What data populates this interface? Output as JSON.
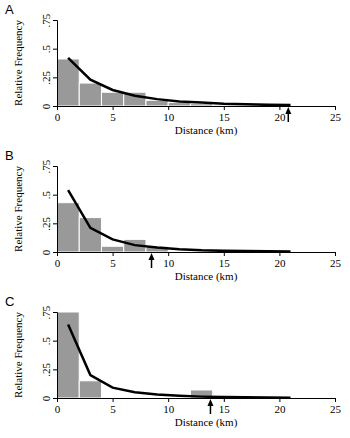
{
  "chart_data": [
    {
      "type": "histogram",
      "title": "A",
      "x_label": "Distance (km)",
      "y_label": "Relative Frequency",
      "bins": [
        0,
        2,
        4,
        6,
        8,
        10,
        12,
        14,
        16,
        18,
        20,
        22
      ],
      "values": [
        0.41,
        0.2,
        0.12,
        0.12,
        0.05,
        0.03,
        0.02,
        0.01,
        0.01,
        0.01,
        0.005
      ],
      "color": "#999999",
      "curve": {
        "x": [
          1,
          3,
          5,
          7,
          9,
          11,
          13,
          15,
          17,
          19,
          21
        ],
        "values": [
          0.42,
          0.23,
          0.14,
          0.09,
          0.06,
          0.04,
          0.03,
          0.02,
          0.015,
          0.01,
          0.008
        ],
        "color": "#000000"
      },
      "arrow_x": 20.8,
      "xlim": [
        0,
        25
      ],
      "xticks": [
        0,
        5,
        10,
        15,
        20,
        25
      ],
      "ylim": [
        0,
        0.75
      ],
      "yticks": [
        0,
        {
          "value": 0.25,
          "label": ".25"
        },
        {
          "value": 0.5,
          "label": ".5"
        },
        {
          "value": 0.75,
          "label": ".75"
        }
      ]
    },
    {
      "type": "histogram",
      "title": "B",
      "x_label": "Distance (km)",
      "y_label": "Relative Frequency",
      "bins": [
        0,
        2,
        4,
        6,
        8,
        10,
        12,
        14,
        16,
        18,
        20,
        22
      ],
      "values": [
        0.43,
        0.3,
        0.05,
        0.11,
        0.05,
        0,
        0,
        0,
        0,
        0,
        0
      ],
      "color": "#999999",
      "curve": {
        "x": [
          1,
          3,
          5,
          7,
          9,
          11,
          13,
          15,
          17,
          19,
          21
        ],
        "values": [
          0.54,
          0.21,
          0.11,
          0.06,
          0.04,
          0.025,
          0.015,
          0.01,
          0.008,
          0.006,
          0.005
        ],
        "color": "#000000"
      },
      "arrow_x": 8.5,
      "xlim": [
        0,
        25
      ],
      "xticks": [
        0,
        5,
        10,
        15,
        20,
        25
      ],
      "ylim": [
        0,
        0.75
      ],
      "yticks": [
        0,
        {
          "value": 0.25,
          "label": ".25"
        },
        {
          "value": 0.5,
          "label": ".5"
        },
        {
          "value": 0.75,
          "label": ".75"
        }
      ]
    },
    {
      "type": "histogram",
      "title": "C",
      "x_label": "Distance (km)",
      "y_label": "Relative Frequency",
      "bins": [
        0,
        2,
        4,
        6,
        8,
        10,
        12,
        14,
        16,
        18,
        20,
        22
      ],
      "values": [
        0.75,
        0.15,
        0,
        0,
        0,
        0,
        0.07,
        0,
        0,
        0,
        0
      ],
      "color": "#999999",
      "curve": {
        "x": [
          1,
          3,
          5,
          7,
          9,
          11,
          13,
          15,
          17,
          19,
          21
        ],
        "values": [
          0.64,
          0.2,
          0.09,
          0.05,
          0.03,
          0.02,
          0.012,
          0.008,
          0.006,
          0.004,
          0.003
        ],
        "color": "#000000"
      },
      "arrow_x": 13.8,
      "xlim": [
        0,
        25
      ],
      "xticks": [
        0,
        5,
        10,
        15,
        20,
        25
      ],
      "ylim": [
        0,
        0.75
      ],
      "yticks": [
        0,
        {
          "value": 0.25,
          "label": ".25"
        },
        {
          "value": 0.5,
          "label": ".5"
        },
        {
          "value": 0.75,
          "label": ".75"
        }
      ]
    }
  ]
}
